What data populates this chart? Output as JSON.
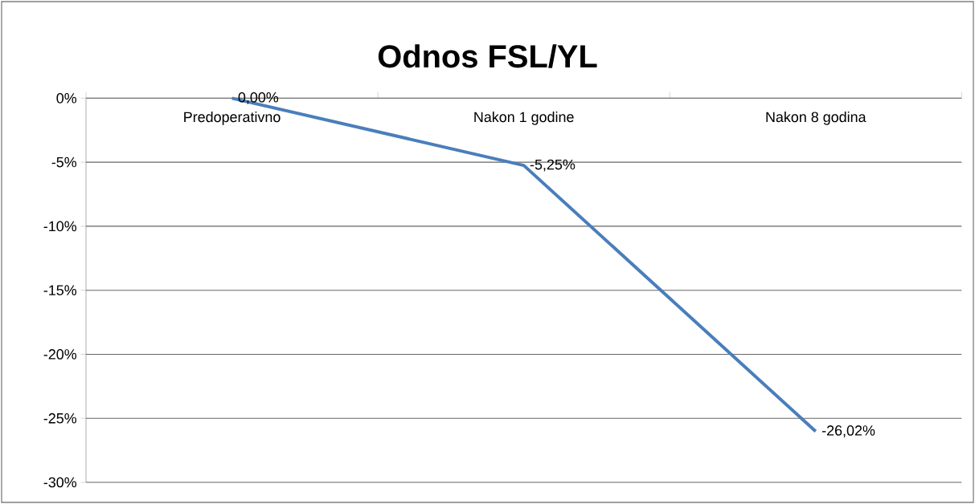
{
  "chart_data": {
    "type": "line",
    "title": "Odnos FSL/YL",
    "categories": [
      "Predoperativno",
      "Nakon 1 godine",
      "Nakon 8 godina"
    ],
    "series": [
      {
        "color": "#4a7ebb",
        "values": [
          0,
          -5.25,
          -26.02
        ],
        "value_labels": [
          "0,00%",
          "-5,25%",
          "-26,02%"
        ]
      }
    ],
    "ylim": [
      -30,
      0
    ],
    "yticks": [
      {
        "value": 0,
        "label": "0%"
      },
      {
        "value": -5,
        "label": "-5%"
      },
      {
        "value": -10,
        "label": "-10%"
      },
      {
        "value": -15,
        "label": "-15%"
      },
      {
        "value": -20,
        "label": "-20%"
      },
      {
        "value": -25,
        "label": "-25%"
      },
      {
        "value": -30,
        "label": "-30%"
      }
    ],
    "grid": "y",
    "marker": "none",
    "line_style": "solid"
  }
}
